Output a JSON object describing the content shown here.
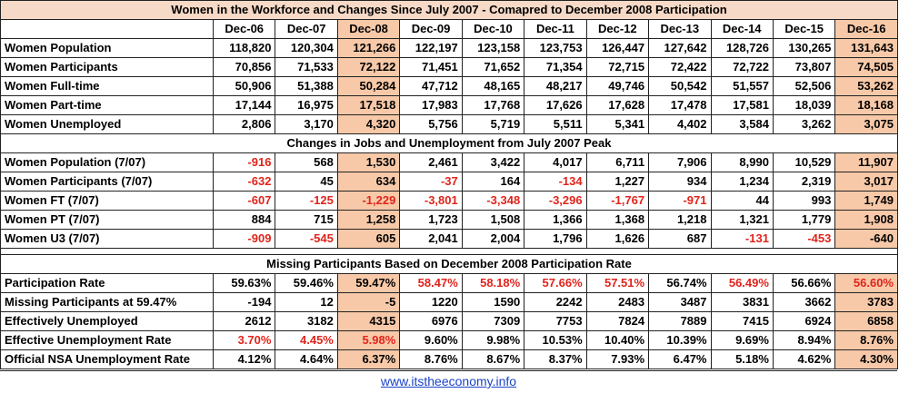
{
  "title": "Women in the Workforce and Changes Since July 2007 - Comapred to December 2008 Participation",
  "columns": [
    "Dec-06",
    "Dec-07",
    "Dec-08",
    "Dec-09",
    "Dec-10",
    "Dec-11",
    "Dec-12",
    "Dec-13",
    "Dec-14",
    "Dec-15",
    "Dec-16"
  ],
  "highlight_columns": [
    2,
    10
  ],
  "colors": {
    "highlight": "#f7c9a8",
    "negative": "#e0241b",
    "link": "#1a43c8",
    "title_bg": "#f6d9c6"
  },
  "sections": [
    {
      "heading": "",
      "rows": [
        {
          "label": "Women Population",
          "values": [
            "118,820",
            "120,304",
            "121,266",
            "122,197",
            "123,158",
            "123,753",
            "126,447",
            "127,642",
            "128,726",
            "130,265",
            "131,643"
          ],
          "red": []
        },
        {
          "label": "Women Participants",
          "values": [
            "70,856",
            "71,533",
            "72,122",
            "71,451",
            "71,652",
            "71,354",
            "72,715",
            "72,422",
            "72,722",
            "73,807",
            "74,505"
          ],
          "red": []
        },
        {
          "label": "Women Full-time",
          "values": [
            "50,906",
            "51,388",
            "50,284",
            "47,712",
            "48,165",
            "48,217",
            "49,746",
            "50,542",
            "51,557",
            "52,506",
            "53,262"
          ],
          "red": []
        },
        {
          "label": "Women Part-time",
          "values": [
            "17,144",
            "16,975",
            "17,518",
            "17,983",
            "17,768",
            "17,626",
            "17,628",
            "17,478",
            "17,581",
            "18,039",
            "18,168"
          ],
          "red": []
        },
        {
          "label": "Women Unemployed",
          "values": [
            "2,806",
            "3,170",
            "4,320",
            "5,756",
            "5,719",
            "5,511",
            "5,341",
            "4,402",
            "3,584",
            "3,262",
            "3,075"
          ],
          "red": []
        }
      ]
    },
    {
      "heading": "Changes in Jobs and Unemployment from July 2007 Peak",
      "rows": [
        {
          "label": "Women Population (7/07)",
          "values": [
            "-916",
            "568",
            "1,530",
            "2,461",
            "3,422",
            "4,017",
            "6,711",
            "7,906",
            "8,990",
            "10,529",
            "11,907"
          ],
          "red": [
            0
          ]
        },
        {
          "label": "Women Participants (7/07)",
          "values": [
            "-632",
            "45",
            "634",
            "-37",
            "164",
            "-134",
            "1,227",
            "934",
            "1,234",
            "2,319",
            "3,017"
          ],
          "red": [
            0,
            3,
            5
          ]
        },
        {
          "label": "Women FT (7/07)",
          "values": [
            "-607",
            "-125",
            "-1,229",
            "-3,801",
            "-3,348",
            "-3,296",
            "-1,767",
            "-971",
            "44",
            "993",
            "1,749"
          ],
          "red": [
            0,
            1,
            2,
            3,
            4,
            5,
            6,
            7
          ]
        },
        {
          "label": "Women PT (7/07)",
          "values": [
            "884",
            "715",
            "1,258",
            "1,723",
            "1,508",
            "1,366",
            "1,368",
            "1,218",
            "1,321",
            "1,779",
            "1,908"
          ],
          "red": []
        },
        {
          "label": "Women U3 (7/07)",
          "values": [
            "-909",
            "-545",
            "605",
            "2,041",
            "2,004",
            "1,796",
            "1,626",
            "687",
            "-131",
            "-453",
            "-640"
          ],
          "red": [
            0,
            1,
            8,
            9
          ]
        }
      ]
    },
    {
      "heading": "Missing Participants Based on December 2008 Participation Rate",
      "rows": [
        {
          "label": "Participation Rate",
          "values": [
            "59.63%",
            "59.46%",
            "59.47%",
            "58.47%",
            "58.18%",
            "57.66%",
            "57.51%",
            "56.74%",
            "56.49%",
            "56.66%",
            "56.60%"
          ],
          "red": [
            3,
            4,
            5,
            6,
            8,
            10
          ]
        },
        {
          "label": "Missing Participants at 59.47%",
          "values": [
            "-194",
            "12",
            "-5",
            "1220",
            "1590",
            "2242",
            "2483",
            "3487",
            "3831",
            "3662",
            "3783"
          ],
          "red": []
        },
        {
          "label": "Effectively Unemployed",
          "values": [
            "2612",
            "3182",
            "4315",
            "6976",
            "7309",
            "7753",
            "7824",
            "7889",
            "7415",
            "6924",
            "6858"
          ],
          "red": []
        },
        {
          "label": "Effective Unemployment Rate",
          "values": [
            "3.70%",
            "4.45%",
            "5.98%",
            "9.60%",
            "9.98%",
            "10.53%",
            "10.40%",
            "10.39%",
            "9.69%",
            "8.94%",
            "8.76%"
          ],
          "red": [
            0,
            1,
            2
          ]
        },
        {
          "label": "Official NSA Unemployment Rate",
          "values": [
            "4.12%",
            "4.64%",
            "6.37%",
            "8.76%",
            "8.67%",
            "8.37%",
            "7.93%",
            "6.47%",
            "5.18%",
            "4.62%",
            "4.30%"
          ],
          "red": []
        }
      ]
    }
  ],
  "footer": {
    "link_text": "www.itstheeconomy.info"
  },
  "chart_data": {
    "type": "table",
    "title": "Women in the Workforce and Changes Since July 2007 - Comapred to December 2008 Participation",
    "columns": [
      "Dec-06",
      "Dec-07",
      "Dec-08",
      "Dec-09",
      "Dec-10",
      "Dec-11",
      "Dec-12",
      "Dec-13",
      "Dec-14",
      "Dec-15",
      "Dec-16"
    ],
    "row_labels": [
      "Women Population",
      "Women Participants",
      "Women Full-time",
      "Women Part-time",
      "Women Unemployed",
      "Women Population (7/07)",
      "Women Participants (7/07)",
      "Women FT (7/07)",
      "Women PT (7/07)",
      "Women U3 (7/07)",
      "Participation Rate",
      "Missing Participants at 59.47%",
      "Effectively Unemployed",
      "Effective Unemployment Rate",
      "Official NSA Unemployment Rate"
    ]
  }
}
